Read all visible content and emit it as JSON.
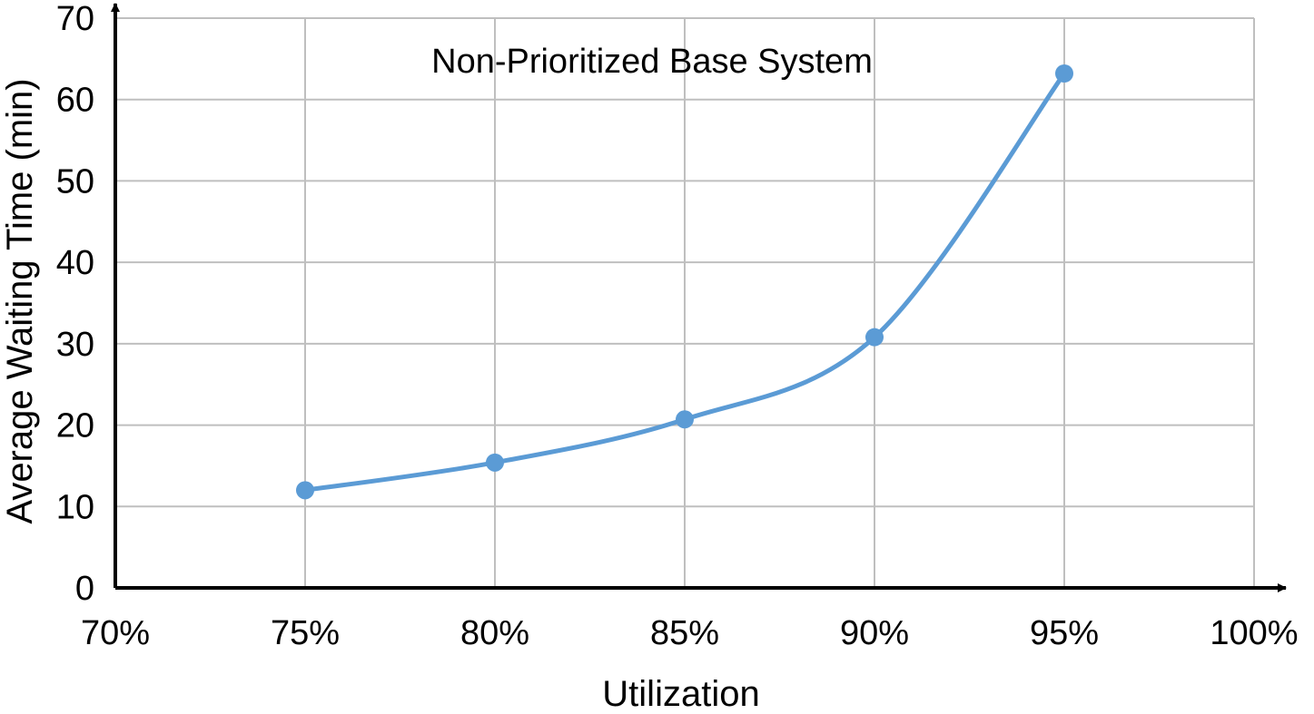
{
  "chart_data": {
    "type": "line",
    "title": "Non-Prioritized Base System",
    "xlabel": "Utilization",
    "ylabel": "Average Waiting Time (min)",
    "x_tick_labels": [
      "70%",
      "75%",
      "80%",
      "85%",
      "90%",
      "95%",
      "100%"
    ],
    "y_tick_labels": [
      "0",
      "10",
      "20",
      "30",
      "40",
      "50",
      "60",
      "70"
    ],
    "xlim": [
      70,
      100
    ],
    "ylim": [
      0,
      70
    ],
    "x_ticks": [
      70,
      75,
      80,
      85,
      90,
      95,
      100
    ],
    "y_ticks": [
      0,
      10,
      20,
      30,
      40,
      50,
      60,
      70
    ],
    "grid": true,
    "smooth": true,
    "series": [
      {
        "x": [
          75,
          80,
          85,
          90,
          95
        ],
        "values": [
          12.0,
          15.4,
          20.7,
          30.8,
          63.2
        ]
      }
    ],
    "colors": {
      "series": "#5b9bd5",
      "grid": "#bfbfbf",
      "axis": "#000000"
    }
  }
}
